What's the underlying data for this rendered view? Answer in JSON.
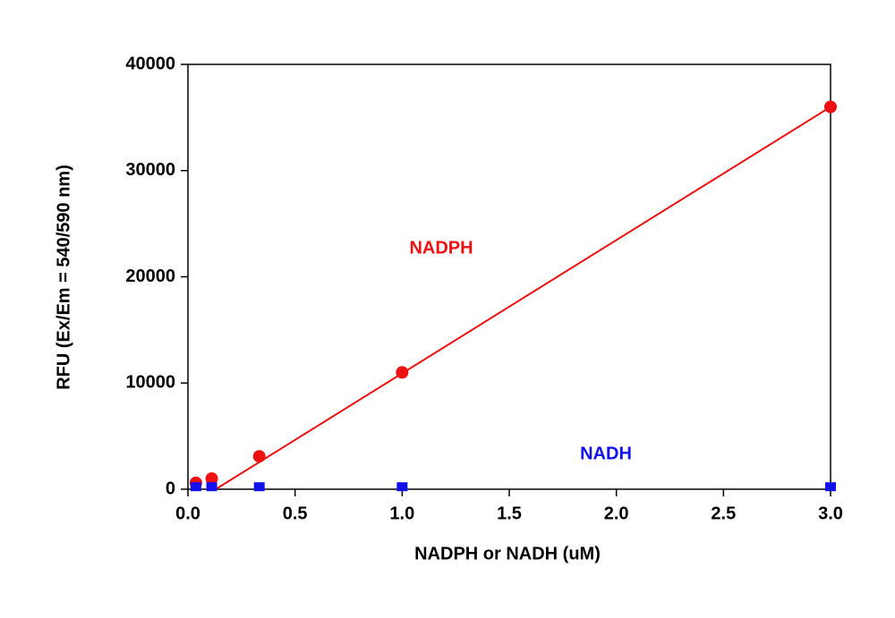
{
  "chart_data": {
    "type": "scatter",
    "x_label": "NADPH or NADH (uM)",
    "y_label": "RFU (Ex/Em = 540/590 nm)",
    "xlim": [
      0,
      3
    ],
    "ylim": [
      0,
      40000
    ],
    "xticks": [
      {
        "value": 0,
        "label": "0.0"
      },
      0.5,
      {
        "value": 1,
        "label": "1.0"
      },
      1.5,
      {
        "value": 2,
        "label": "2.0"
      },
      2.5,
      {
        "value": 3,
        "label": "3.0"
      }
    ],
    "yticks": [
      0,
      10000,
      20000,
      30000,
      40000
    ],
    "series": [
      {
        "name": "NADPH",
        "color": "#ee1111",
        "marker": "circle",
        "x": [
          0.037,
          0.111,
          0.333,
          1.0,
          3.0
        ],
        "values": [
          600,
          1000,
          3100,
          11000,
          36000
        ],
        "fit_x": [
          0.13,
          3.0
        ],
        "fit_values": [
          0,
          36000
        ]
      },
      {
        "name": "NADH",
        "color": "#1111ee",
        "marker": "square",
        "x": [
          0.037,
          0.111,
          0.333,
          1.0,
          3.0
        ],
        "values": [
          150,
          150,
          150,
          150,
          150
        ]
      }
    ]
  }
}
